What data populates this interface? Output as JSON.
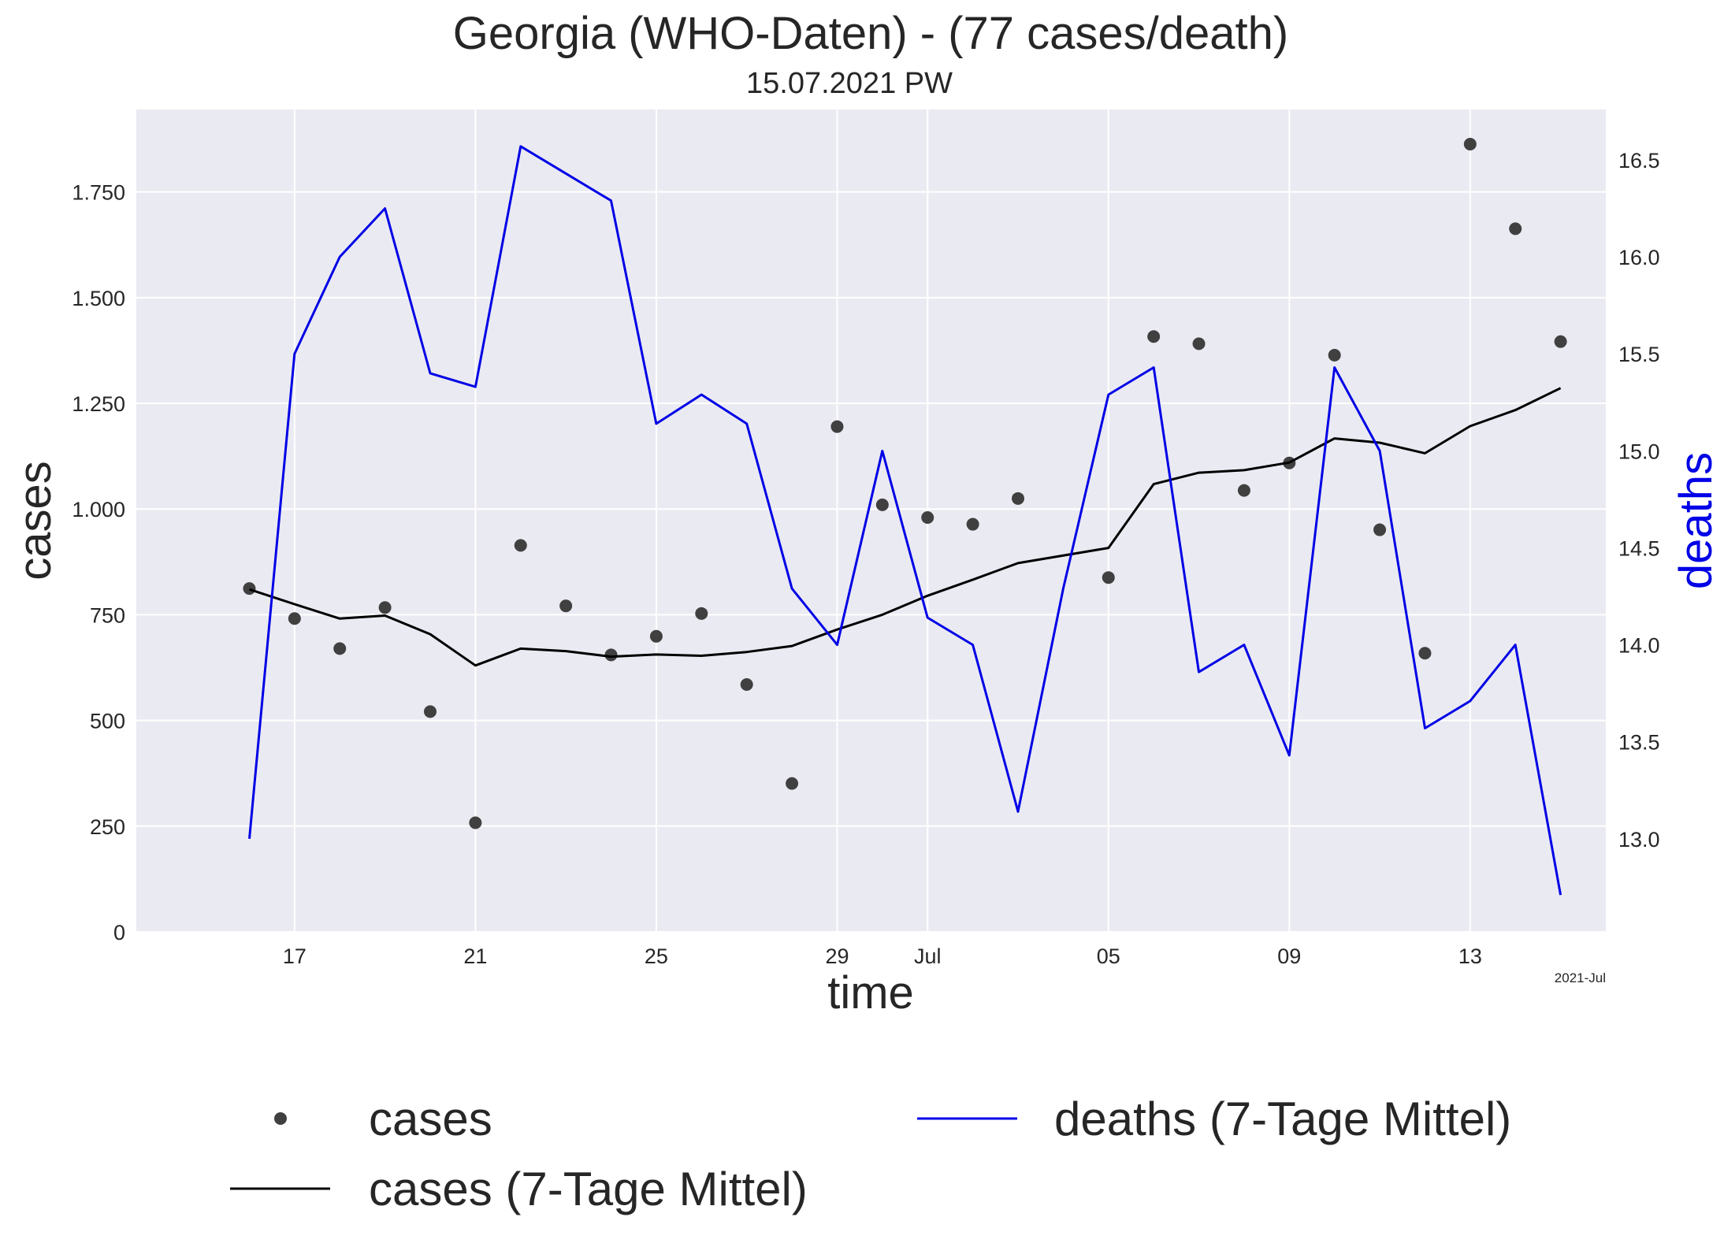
{
  "chart_data": {
    "type": "line",
    "title": "Georgia (WHO-Daten) - (77 cases/death)",
    "subtitle": "15.07.2021 PW",
    "xlabel": "time",
    "ylabel_left": "cases",
    "ylabel_right": "deaths",
    "x_offset_label": "2021-Jul",
    "x_ticks": [
      {
        "date": "2021-06-17",
        "label": "17"
      },
      {
        "date": "2021-06-21",
        "label": "21"
      },
      {
        "date": "2021-06-25",
        "label": "25"
      },
      {
        "date": "2021-06-29",
        "label": "29"
      },
      {
        "date": "2021-07-01",
        "label": "Jul"
      },
      {
        "date": "2021-07-05",
        "label": "05"
      },
      {
        "date": "2021-07-09",
        "label": "09"
      },
      {
        "date": "2021-07-13",
        "label": "13"
      }
    ],
    "xlim": [
      "2021-06-13T12:00",
      "2021-07-16T00:00"
    ],
    "y_left": {
      "lim": [
        0,
        1945
      ],
      "ticks": [
        {
          "value": 0,
          "label": "0"
        },
        {
          "value": 250,
          "label": "250"
        },
        {
          "value": 500,
          "label": "500"
        },
        {
          "value": 750,
          "label": "750"
        },
        {
          "value": 1000,
          "label": "1.000"
        },
        {
          "value": 1250,
          "label": "1.250"
        },
        {
          "value": 1500,
          "label": "1.500"
        },
        {
          "value": 1750,
          "label": "1.750"
        }
      ]
    },
    "y_right": {
      "lim": [
        12.52,
        16.76
      ],
      "ticks": [
        {
          "value": 13.0,
          "label": "13.0"
        },
        {
          "value": 13.5,
          "label": "13.5"
        },
        {
          "value": 14.0,
          "label": "14.0"
        },
        {
          "value": 14.5,
          "label": "14.5"
        },
        {
          "value": 15.0,
          "label": "15.0"
        },
        {
          "value": 15.5,
          "label": "15.5"
        },
        {
          "value": 16.0,
          "label": "16.0"
        },
        {
          "value": 16.5,
          "label": "16.5"
        }
      ]
    },
    "dates": [
      "2021-06-16",
      "2021-06-17",
      "2021-06-18",
      "2021-06-19",
      "2021-06-20",
      "2021-06-21",
      "2021-06-22",
      "2021-06-23",
      "2021-06-24",
      "2021-06-25",
      "2021-06-26",
      "2021-06-27",
      "2021-06-28",
      "2021-06-29",
      "2021-06-30",
      "2021-07-01",
      "2021-07-02",
      "2021-07-03",
      "2021-07-04",
      "2021-07-05",
      "2021-07-06",
      "2021-07-07",
      "2021-07-08",
      "2021-07-09",
      "2021-07-10",
      "2021-07-11",
      "2021-07-12",
      "2021-07-13",
      "2021-07-14",
      "2021-07-15"
    ],
    "series": [
      {
        "name": "cases",
        "axis": "left",
        "style": "points",
        "color": "#404040",
        "values": [
          812,
          741,
          670,
          767,
          521,
          258,
          914,
          771,
          655,
          699,
          753,
          585,
          351,
          1195,
          1010,
          980,
          964,
          1025,
          null,
          838,
          1408,
          1391,
          1044,
          1109,
          1364,
          951,
          659,
          1863,
          1663,
          1396
        ]
      },
      {
        "name": "cases (7-Tage Mittel)",
        "axis": "left",
        "style": "line",
        "color": "#000000",
        "values": [
          810,
          775,
          741,
          748,
          704,
          630,
          670,
          664,
          651,
          656,
          653,
          662,
          676,
          715,
          750,
          795,
          833,
          872,
          null,
          908,
          1059,
          1086,
          1092,
          1110,
          1167,
          1157,
          1132,
          1196,
          1234,
          1286
        ]
      },
      {
        "name": "deaths (7-Tage Mittel)",
        "axis": "right",
        "style": "line",
        "color": "#0000e6",
        "values": [
          13.0,
          15.5,
          16.0,
          16.25,
          15.4,
          15.33,
          16.57,
          16.43,
          16.29,
          15.14,
          15.29,
          15.14,
          14.29,
          14.0,
          15.0,
          14.14,
          14.0,
          13.14,
          14.29,
          15.29,
          15.43,
          13.86,
          14.0,
          13.43,
          15.43,
          15.0,
          13.57,
          13.71,
          14.0,
          12.71
        ]
      }
    ],
    "legend": {
      "placement": "bottom",
      "entries": [
        {
          "label": "cases"
        },
        {
          "label": "cases (7-Tage Mittel)"
        },
        {
          "label": "deaths (7-Tage Mittel)"
        }
      ]
    },
    "grid": true,
    "plot_background": "#eaeaf2"
  }
}
